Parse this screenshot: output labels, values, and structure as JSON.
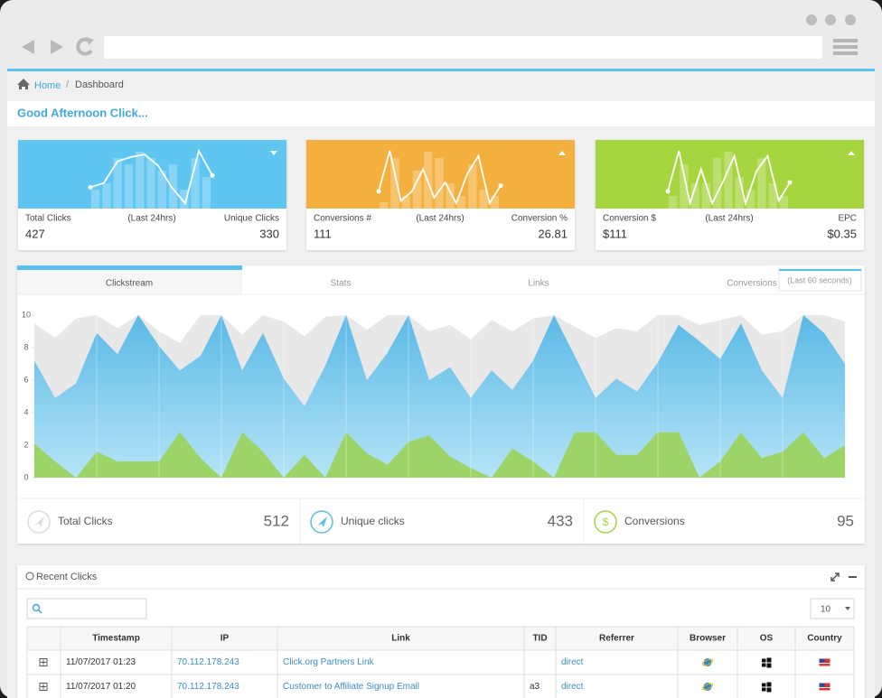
{
  "breadcrumb": {
    "home": "Home",
    "current": "Dashboard"
  },
  "greeting": "Good Afternoon Click...",
  "cards": [
    {
      "color": "#5fc6f1",
      "left_label": "Total Clicks",
      "center_label": "(Last 24hrs)",
      "right_label": "Unique Clicks",
      "left_value": 427,
      "right_value": 330,
      "line": [
        3,
        3.7,
        7.2,
        7.9,
        8.3,
        6.5,
        3,
        0.4,
        8.9,
        4.9
      ],
      "bars": [
        3,
        4,
        8,
        7,
        9,
        8,
        6,
        7,
        3,
        8,
        5
      ]
    },
    {
      "color": "#f4b03f",
      "left_label": "Conversions #",
      "center_label": "(Last 24hrs)",
      "right_label": "Conversion %",
      "left_value": 111,
      "right_value": 26.81,
      "line": [
        2.3,
        8.7,
        0.8,
        2.3,
        5.8,
        1.3,
        3.7,
        0.4,
        5.1,
        7.9,
        0.4,
        3.2
      ],
      "bars": [
        1,
        8,
        2,
        6,
        9,
        8,
        4,
        2,
        7,
        3,
        2
      ]
    },
    {
      "color": "#a5d63f",
      "left_label": "Conversion $",
      "center_label": "(Last 24hrs)",
      "right_label": "EPC",
      "left_value": "$111",
      "right_value": "$0.35",
      "line": [
        2.3,
        8.7,
        0.4,
        5.8,
        0.4,
        3.9,
        7.9,
        0.4,
        5.5,
        7.9,
        0.8,
        3.7
      ],
      "bars": [
        2,
        7,
        4,
        4,
        8,
        9,
        5,
        3,
        8,
        4,
        2
      ]
    }
  ],
  "tabs": [
    "Clickstream",
    "Stats",
    "Links",
    "Conversions"
  ],
  "tab_note": "(Last 60 seconds)",
  "chart_data": {
    "type": "area",
    "ylim": [
      0,
      10
    ],
    "yticks": [
      0,
      2,
      4,
      6,
      8,
      10
    ],
    "series": [
      {
        "color": "#e8e8e8",
        "values": [
          9.5,
          8.6,
          9.8,
          10,
          9.2,
          10,
          9.0,
          8.3,
          10,
          10,
          8.8,
          10,
          9.6,
          8.7,
          9.9,
          10,
          9.1,
          10,
          10,
          9.0,
          9.4,
          8.5,
          9.7,
          9.0,
          9.8,
          10,
          9.3,
          8.6,
          9.2,
          9.0,
          10,
          10,
          9.4,
          9.7,
          10,
          8.8,
          9.0,
          10,
          10,
          9.6
        ]
      },
      {
        "color": "#5ab9e6",
        "values": [
          7.2,
          4.9,
          5.8,
          8.9,
          7.6,
          10,
          8.1,
          6.6,
          7.5,
          10,
          6.6,
          8.9,
          6.1,
          4.4,
          6.9,
          10,
          6.0,
          7.7,
          10,
          6.0,
          6.8,
          4.9,
          6.6,
          5.4,
          7.2,
          10,
          7.5,
          4.9,
          6.1,
          5.3,
          7.1,
          9.4,
          8.4,
          7.3,
          9.5,
          6.6,
          4.9,
          10,
          8.9,
          7.0
        ]
      },
      {
        "color": "#9dd468",
        "values": [
          2.1,
          1.0,
          0,
          1.6,
          1.0,
          1.0,
          1.0,
          2.8,
          1.2,
          0,
          2.8,
          1.6,
          0,
          1.4,
          0,
          2.8,
          1.5,
          0.8,
          2.2,
          2.6,
          1.3,
          0.6,
          0,
          1.8,
          1.0,
          0,
          2.8,
          2.8,
          1.4,
          1.4,
          2.8,
          2.8,
          0,
          1.0,
          2.8,
          1.2,
          1.6,
          2.8,
          1.2,
          2.0
        ]
      }
    ]
  },
  "stats": [
    {
      "label": "Total Clicks",
      "value": 512
    },
    {
      "label": "Unique clicks",
      "value": 433
    },
    {
      "label": "Conversions",
      "value": 95
    }
  ],
  "recent_clicks": {
    "title": "Recent Clicks",
    "page_size": 10,
    "table": {
      "headers": [
        "Timestamp",
        "IP",
        "Link",
        "TID",
        "Referrer",
        "Browser",
        "OS",
        "Country"
      ],
      "rows": [
        [
          "11/07/2017 01:23",
          "70.112.178.243",
          "Click.org Partners Link",
          null,
          "direct"
        ],
        [
          "11/07/2017 01:20",
          "70.112.178.243",
          "Customer to Affiliate Signup Email",
          "a3",
          "direct"
        ]
      ]
    }
  }
}
